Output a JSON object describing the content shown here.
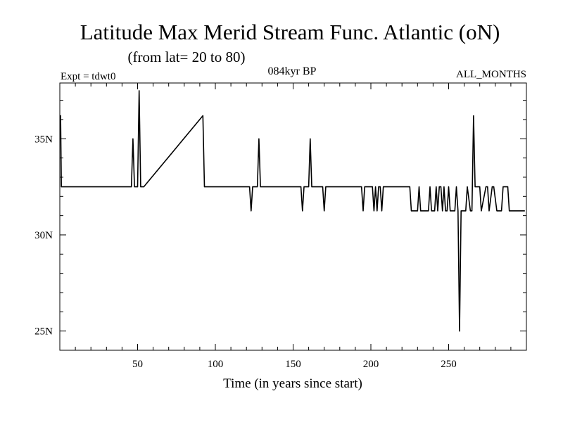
{
  "title": "Latitude Max Merid Stream Func. Atlantic (oN)",
  "subtitle": "(from lat= 20 to 80)",
  "expt_label": "Expt = tdwt0",
  "period_label": "084kyr BP",
  "months_label": "ALL_MONTHS",
  "chart_data": {
    "type": "line",
    "xlabel": "Time (in years since start)",
    "ylabel": "",
    "xlim": [
      0,
      300
    ],
    "ylim": [
      24,
      37.9
    ],
    "x_ticks": [
      50,
      100,
      150,
      200,
      250
    ],
    "x_tick_labels": [
      "50",
      "100",
      "150",
      "200",
      "250"
    ],
    "y_ticks": [
      25,
      30,
      35
    ],
    "y_tick_labels": [
      "25N",
      "30N",
      "35N"
    ],
    "series": [
      {
        "color": "#000000",
        "x": [
          0,
          0.5,
          1,
          2,
          46,
          47,
          48,
          49,
          50,
          51,
          52,
          53,
          54,
          92,
          93,
          94,
          122,
          123,
          124,
          125,
          127,
          128,
          129,
          130,
          150,
          155,
          156,
          157,
          160,
          161,
          162,
          163,
          169,
          170,
          171,
          194,
          195,
          196,
          198,
          201,
          202,
          203,
          204,
          205,
          206,
          207,
          208,
          209,
          210,
          212,
          225,
          226,
          230,
          231,
          232,
          233,
          237,
          238,
          239,
          241,
          242,
          243,
          244,
          245,
          246,
          247,
          248,
          249,
          250,
          251,
          252,
          253,
          254,
          255,
          256,
          257,
          258,
          259,
          260,
          261,
          262,
          264,
          265,
          266,
          267,
          268,
          269,
          270,
          271,
          274,
          275,
          276,
          278,
          279,
          281,
          282,
          284,
          285,
          288,
          289,
          290,
          292,
          293,
          294,
          295,
          296,
          297,
          299
        ],
        "values": [
          36.2,
          36.2,
          32.5,
          32.5,
          32.5,
          35.0,
          32.5,
          32.5,
          32.5,
          37.5,
          32.5,
          32.5,
          32.5,
          36.2,
          32.5,
          32.5,
          32.5,
          31.25,
          32.5,
          32.5,
          32.5,
          35.0,
          32.5,
          32.5,
          32.5,
          32.5,
          31.25,
          32.5,
          32.5,
          35.0,
          32.5,
          32.5,
          32.5,
          31.25,
          32.5,
          32.5,
          31.25,
          32.5,
          32.5,
          32.5,
          31.25,
          32.5,
          31.25,
          32.5,
          32.5,
          31.25,
          32.5,
          32.5,
          32.5,
          32.5,
          32.5,
          31.25,
          31.25,
          32.5,
          31.25,
          31.25,
          31.25,
          32.5,
          31.25,
          31.25,
          32.5,
          31.25,
          32.5,
          32.5,
          31.25,
          32.5,
          31.25,
          31.25,
          32.5,
          31.25,
          31.25,
          31.25,
          31.25,
          32.5,
          31.25,
          25.0,
          31.25,
          31.25,
          31.25,
          31.25,
          32.5,
          31.25,
          31.25,
          36.2,
          32.5,
          32.5,
          32.5,
          32.5,
          31.25,
          32.5,
          32.5,
          31.25,
          32.5,
          32.5,
          31.25,
          31.25,
          31.25,
          32.5,
          32.5,
          31.25,
          31.25,
          31.25,
          31.25,
          31.25,
          31.25,
          31.25,
          31.25,
          31.25
        ]
      }
    ]
  }
}
